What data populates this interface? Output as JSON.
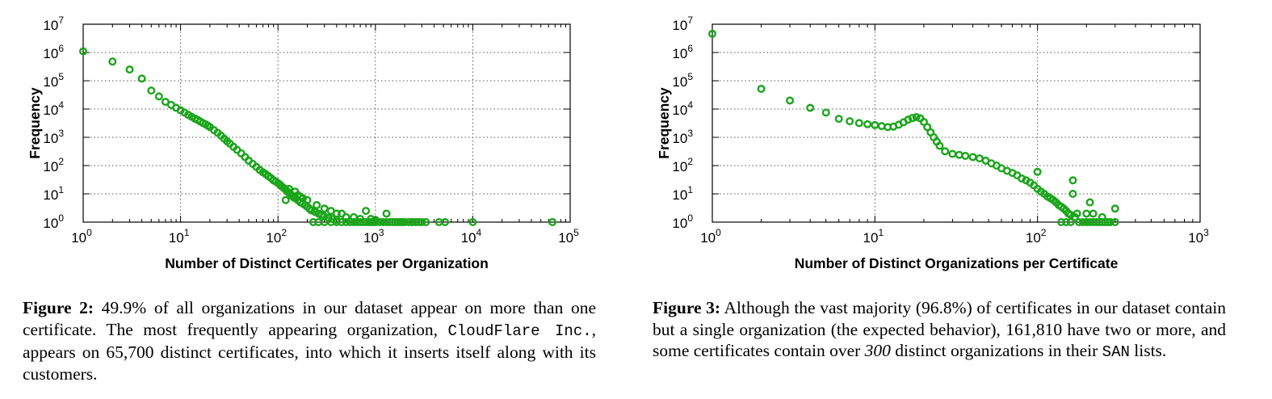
{
  "figures": [
    {
      "id": "fig2",
      "caption_label": "Figure 2:",
      "caption_parts": [
        {
          "text": " 49.9% of all organizations in our dataset appear on more than one certificate. The most frequently appearing organization, ",
          "style": "normal"
        },
        {
          "text": "CloudFlare Inc.",
          "style": "mono"
        },
        {
          "text": ", appears on 65,700 distinct certificates, into which it inserts itself along with its customers.",
          "style": "normal"
        }
      ],
      "chart_data": {
        "type": "scatter",
        "xlabel": "Number of Distinct Certificates per Organization",
        "ylabel": "Frequency",
        "x_scale": "log",
        "y_scale": "log",
        "xlim": [
          1,
          100000
        ],
        "ylim": [
          1,
          10000000
        ],
        "x_ticks": [
          1,
          10,
          100,
          1000,
          10000,
          100000
        ],
        "y_ticks": [
          1,
          10,
          100,
          1000,
          10000,
          100000,
          1000000,
          10000000
        ],
        "grid": true,
        "marker_color": "#1aa51a",
        "series": [
          {
            "points": [
              [
                1,
                1100000
              ],
              [
                2,
                480000
              ],
              [
                3,
                250000
              ],
              [
                4,
                120000
              ],
              [
                5,
                45000
              ],
              [
                6,
                28000
              ],
              [
                7,
                18000
              ],
              [
                8,
                14000
              ],
              [
                9,
                11000
              ],
              [
                10,
                9000
              ],
              [
                11,
                7500
              ],
              [
                12,
                6200
              ],
              [
                13,
                5300
              ],
              [
                14,
                4600
              ],
              [
                15,
                4100
              ],
              [
                16,
                3600
              ],
              [
                17,
                3200
              ],
              [
                18,
                2900
              ],
              [
                19,
                2600
              ],
              [
                20,
                2300
              ],
              [
                22,
                1800
              ],
              [
                24,
                1450
              ],
              [
                26,
                1150
              ],
              [
                28,
                900
              ],
              [
                30,
                720
              ],
              [
                32,
                600
              ],
              [
                35,
                460
              ],
              [
                38,
                360
              ],
              [
                42,
                270
              ],
              [
                46,
                200
              ],
              [
                50,
                150
              ],
              [
                55,
                115
              ],
              [
                60,
                90
              ],
              [
                65,
                70
              ],
              [
                70,
                58
              ],
              [
                75,
                50
              ],
              [
                80,
                42
              ],
              [
                85,
                36
              ],
              [
                90,
                30
              ],
              [
                95,
                27
              ],
              [
                100,
                24
              ],
              [
                105,
                21
              ],
              [
                110,
                18
              ],
              [
                115,
                16
              ],
              [
                120,
                14
              ],
              [
                125,
                12
              ],
              [
                130,
                11
              ],
              [
                135,
                9.5
              ],
              [
                140,
                8.5
              ],
              [
                145,
                7.5
              ],
              [
                150,
                7
              ],
              [
                160,
                6
              ],
              [
                170,
                5
              ],
              [
                180,
                4.5
              ],
              [
                190,
                4
              ],
              [
                200,
                3.5
              ],
              [
                210,
                3
              ],
              [
                220,
                2.6
              ],
              [
                240,
                2.3
              ],
              [
                260,
                2
              ],
              [
                280,
                1.8
              ],
              [
                300,
                1.6
              ],
              [
                330,
                1.4
              ],
              [
                360,
                1.3
              ],
              [
                400,
                1.2
              ],
              [
                120,
                6
              ],
              [
                130,
                15
              ],
              [
                150,
                12
              ],
              [
                160,
                9
              ],
              [
                170,
                8
              ],
              [
                180,
                7
              ],
              [
                200,
                6
              ],
              [
                250,
                4
              ],
              [
                300,
                3
              ],
              [
                350,
                2.5
              ],
              [
                400,
                2
              ],
              [
                450,
                2
              ],
              [
                500,
                1.5
              ],
              [
                600,
                1.5
              ],
              [
                700,
                1.3
              ],
              [
                800,
                2.5
              ],
              [
                900,
                1.3
              ],
              [
                1000,
                1.2
              ],
              [
                1300,
                2
              ],
              [
                230,
                1
              ],
              [
                260,
                1
              ],
              [
                300,
                1
              ],
              [
                350,
                1
              ],
              [
                400,
                1
              ],
              [
                450,
                1
              ],
              [
                500,
                1
              ],
              [
                550,
                1
              ],
              [
                600,
                1
              ],
              [
                650,
                1
              ],
              [
                700,
                1
              ],
              [
                750,
                1
              ],
              [
                800,
                1
              ],
              [
                850,
                1
              ],
              [
                900,
                1
              ],
              [
                950,
                1
              ],
              [
                1000,
                1
              ],
              [
                1100,
                1
              ],
              [
                1200,
                1
              ],
              [
                1300,
                1
              ],
              [
                1400,
                1
              ],
              [
                1500,
                1
              ],
              [
                1600,
                1
              ],
              [
                1700,
                1
              ],
              [
                1800,
                1
              ],
              [
                1900,
                1
              ],
              [
                2000,
                1
              ],
              [
                2200,
                1
              ],
              [
                2400,
                1
              ],
              [
                2600,
                1
              ],
              [
                2800,
                1
              ],
              [
                3000,
                1
              ],
              [
                3300,
                1
              ],
              [
                4500,
                1
              ],
              [
                5200,
                1
              ],
              [
                10000,
                1
              ],
              [
                65700,
                1
              ]
            ]
          }
        ]
      }
    },
    {
      "id": "fig3",
      "caption_label": "Figure 3:",
      "caption_parts": [
        {
          "text": " Although the vast majority (96.8%) of certificates in our dataset contain but a single organization (the expected behavior), 161,810 have two or more, and some certificates contain over ",
          "style": "normal"
        },
        {
          "text": "300",
          "style": "italic"
        },
        {
          "text": " distinct organizations in their ",
          "style": "normal"
        },
        {
          "text": "SAN",
          "style": "mono"
        },
        {
          "text": " lists.",
          "style": "normal"
        }
      ],
      "chart_data": {
        "type": "scatter",
        "xlabel": "Number of Distinct Organizations per Certificate",
        "ylabel": "Frequency",
        "x_scale": "log",
        "y_scale": "log",
        "xlim": [
          1,
          1000
        ],
        "ylim": [
          1,
          10000000
        ],
        "x_ticks": [
          1,
          10,
          100,
          1000
        ],
        "y_ticks": [
          1,
          10,
          100,
          1000,
          10000,
          100000,
          1000000,
          10000000
        ],
        "grid": true,
        "marker_color": "#1aa51a",
        "series": [
          {
            "points": [
              [
                1,
                4600000
              ],
              [
                2,
                52000
              ],
              [
                3,
                20000
              ],
              [
                4,
                11000
              ],
              [
                5,
                7500
              ],
              [
                6,
                4500
              ],
              [
                7,
                3700
              ],
              [
                8,
                3200
              ],
              [
                9,
                2900
              ],
              [
                10,
                2700
              ],
              [
                11,
                2500
              ],
              [
                12,
                2300
              ],
              [
                13,
                2400
              ],
              [
                14,
                2800
              ],
              [
                15,
                3400
              ],
              [
                16,
                4200
              ],
              [
                17,
                4800
              ],
              [
                18,
                5200
              ],
              [
                19,
                4700
              ],
              [
                20,
                3500
              ],
              [
                21,
                2300
              ],
              [
                22,
                1500
              ],
              [
                23,
                1000
              ],
              [
                24,
                700
              ],
              [
                25,
                500
              ],
              [
                27,
                320
              ],
              [
                30,
                260
              ],
              [
                33,
                240
              ],
              [
                36,
                220
              ],
              [
                40,
                200
              ],
              [
                44,
                180
              ],
              [
                48,
                150
              ],
              [
                52,
                120
              ],
              [
                56,
                100
              ],
              [
                60,
                80
              ],
              [
                65,
                65
              ],
              [
                70,
                55
              ],
              [
                75,
                45
              ],
              [
                80,
                35
              ],
              [
                85,
                30
              ],
              [
                90,
                25
              ],
              [
                95,
                20
              ],
              [
                100,
                60
              ],
              [
                100,
                15
              ],
              [
                105,
                12
              ],
              [
                110,
                10
              ],
              [
                115,
                8
              ],
              [
                120,
                7
              ],
              [
                125,
                6
              ],
              [
                130,
                5
              ],
              [
                135,
                4
              ],
              [
                140,
                3.5
              ],
              [
                145,
                3
              ],
              [
                150,
                2.5
              ],
              [
                155,
                2
              ],
              [
                160,
                1.8
              ],
              [
                165,
                30
              ],
              [
                165,
                10
              ],
              [
                170,
                1.5
              ],
              [
                175,
                2
              ],
              [
                180,
                1
              ],
              [
                190,
                1
              ],
              [
                200,
                1
              ],
              [
                210,
                5
              ],
              [
                210,
                1
              ],
              [
                220,
                1
              ],
              [
                230,
                1
              ],
              [
                240,
                1
              ],
              [
                250,
                1
              ],
              [
                260,
                1
              ],
              [
                270,
                1
              ],
              [
                280,
                1
              ],
              [
                300,
                3
              ],
              [
                300,
                1
              ],
              [
                160,
                1
              ],
              [
                150,
                1
              ],
              [
                140,
                1
              ],
              [
                200,
                2
              ],
              [
                220,
                2
              ],
              [
                250,
                1.5
              ]
            ]
          }
        ]
      }
    }
  ]
}
